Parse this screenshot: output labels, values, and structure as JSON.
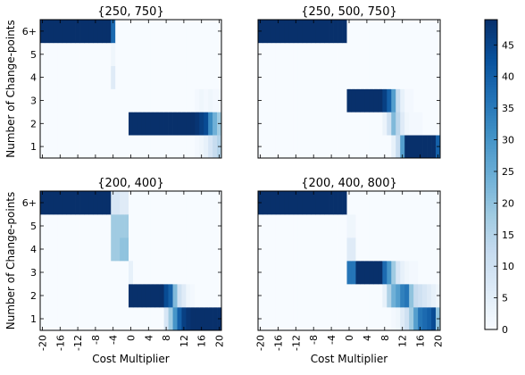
{
  "chart_data": {
    "type": "heatmap",
    "colormap": "Blues",
    "colorbar": {
      "min": 0,
      "max": 49,
      "ticks": [
        0,
        5,
        10,
        15,
        20,
        25,
        30,
        35,
        40,
        45
      ]
    },
    "xlabel": "Cost Multiplier",
    "ylabel": "Number of Change-points",
    "x_ticks": [
      "-20",
      "-16",
      "-12",
      "-8",
      "-4",
      "0",
      "4",
      "8",
      "12",
      "16",
      "20"
    ],
    "y_ticks": [
      "1",
      "2",
      "3",
      "4",
      "5",
      "6+"
    ],
    "x_values": [
      -20,
      -19,
      -18,
      -17,
      -16,
      -15,
      -14,
      -13,
      -12,
      -11,
      -10,
      -9,
      -8,
      -7,
      -6,
      -5,
      -4,
      -3,
      -2,
      -1,
      0,
      1,
      2,
      3,
      4,
      5,
      6,
      7,
      8,
      9,
      10,
      11,
      12,
      13,
      14,
      15,
      16,
      17,
      18,
      19,
      20
    ],
    "panels": [
      {
        "title": "{250, 750}",
        "rows_bottom_to_top": [
          [
            0,
            0,
            0,
            0,
            0,
            0,
            0,
            0,
            0,
            0,
            0,
            0,
            0,
            0,
            0,
            0,
            0,
            0,
            0,
            0,
            0,
            0,
            0,
            0,
            0,
            0,
            0,
            0,
            0,
            0,
            0,
            0,
            0,
            0,
            0,
            1,
            2,
            4,
            8,
            12,
            15
          ],
          [
            0,
            0,
            0,
            0,
            0,
            0,
            0,
            0,
            0,
            0,
            0,
            0,
            0,
            0,
            0,
            0,
            0,
            0,
            0,
            0,
            49,
            49,
            49,
            49,
            49,
            49,
            49,
            49,
            49,
            49,
            49,
            49,
            49,
            49,
            49,
            48,
            46,
            44,
            32,
            24,
            18
          ],
          [
            0,
            0,
            0,
            0,
            0,
            0,
            0,
            0,
            0,
            0,
            0,
            0,
            0,
            0,
            0,
            0,
            0,
            0,
            0,
            0,
            0,
            0,
            0,
            0,
            0,
            0,
            0,
            0,
            0,
            0,
            0,
            0,
            0,
            0,
            0,
            1,
            2,
            1,
            2,
            1,
            1
          ],
          [
            0,
            0,
            0,
            0,
            0,
            0,
            0,
            0,
            0,
            0,
            0,
            0,
            0,
            0,
            0,
            0,
            6,
            0,
            0,
            0,
            0,
            0,
            0,
            0,
            0,
            0,
            0,
            0,
            0,
            0,
            0,
            0,
            0,
            0,
            0,
            0,
            0,
            0,
            0,
            0,
            0
          ],
          [
            0,
            0,
            0,
            0,
            0,
            0,
            0,
            0,
            0,
            0,
            0,
            0,
            0,
            0,
            0,
            0,
            2,
            0,
            0,
            0,
            0,
            0,
            0,
            0,
            0,
            0,
            0,
            0,
            0,
            0,
            0,
            0,
            0,
            0,
            0,
            0,
            0,
            0,
            0,
            0,
            0
          ],
          [
            49,
            49,
            49,
            49,
            49,
            49,
            49,
            49,
            49,
            49,
            49,
            49,
            49,
            49,
            49,
            49,
            38,
            0,
            0,
            0,
            0,
            0,
            0,
            0,
            0,
            0,
            0,
            0,
            0,
            0,
            0,
            0,
            0,
            0,
            0,
            0,
            0,
            0,
            0,
            0,
            0
          ]
        ]
      },
      {
        "title": "{250, 500, 750}",
        "rows_bottom_to_top": [
          [
            0,
            0,
            0,
            0,
            0,
            0,
            0,
            0,
            0,
            0,
            0,
            0,
            0,
            0,
            0,
            0,
            0,
            0,
            0,
            0,
            0,
            0,
            0,
            0,
            0,
            0,
            0,
            0,
            0,
            0,
            4,
            12,
            28,
            49,
            49,
            49,
            49,
            49,
            49,
            49,
            40
          ],
          [
            0,
            0,
            0,
            0,
            0,
            0,
            0,
            0,
            0,
            0,
            0,
            0,
            0,
            0,
            0,
            0,
            0,
            0,
            0,
            0,
            0,
            0,
            0,
            0,
            0,
            0,
            0,
            0,
            3,
            10,
            22,
            14,
            6,
            2,
            1,
            1,
            1,
            0,
            0,
            0,
            0
          ],
          [
            0,
            0,
            0,
            0,
            0,
            0,
            0,
            0,
            0,
            0,
            0,
            0,
            0,
            0,
            0,
            0,
            0,
            0,
            0,
            0,
            49,
            49,
            49,
            49,
            49,
            49,
            49,
            49,
            46,
            40,
            28,
            12,
            4,
            1,
            1,
            0,
            0,
            0,
            0,
            0,
            0
          ],
          [
            0,
            0,
            0,
            0,
            0,
            0,
            0,
            0,
            0,
            0,
            0,
            0,
            0,
            0,
            0,
            0,
            0,
            0,
            0,
            0,
            0,
            0,
            0,
            0,
            0,
            0,
            0,
            0,
            0,
            0,
            0,
            0,
            0,
            0,
            0,
            0,
            0,
            0,
            0,
            0,
            0
          ],
          [
            0,
            0,
            0,
            0,
            0,
            0,
            0,
            0,
            0,
            0,
            0,
            0,
            0,
            0,
            0,
            0,
            0,
            0,
            0,
            0,
            0,
            0,
            0,
            0,
            0,
            0,
            0,
            0,
            0,
            0,
            0,
            0,
            0,
            0,
            0,
            0,
            0,
            0,
            0,
            0,
            0
          ],
          [
            49,
            49,
            49,
            49,
            49,
            49,
            49,
            49,
            49,
            49,
            49,
            49,
            49,
            49,
            49,
            49,
            49,
            49,
            49,
            49,
            0,
            0,
            0,
            0,
            0,
            0,
            0,
            0,
            0,
            0,
            0,
            0,
            0,
            0,
            0,
            0,
            0,
            0,
            0,
            0,
            0
          ]
        ]
      },
      {
        "title": "{200, 400}",
        "rows_bottom_to_top": [
          [
            0,
            0,
            0,
            0,
            0,
            0,
            0,
            0,
            0,
            0,
            0,
            0,
            0,
            0,
            0,
            0,
            0,
            0,
            0,
            0,
            0,
            0,
            0,
            0,
            0,
            0,
            0,
            0,
            8,
            18,
            30,
            40,
            46,
            48,
            49,
            49,
            49,
            49,
            49,
            49,
            49
          ],
          [
            0,
            0,
            0,
            0,
            0,
            0,
            0,
            0,
            0,
            0,
            0,
            0,
            0,
            0,
            0,
            0,
            0,
            0,
            0,
            0,
            49,
            49,
            49,
            49,
            49,
            49,
            49,
            49,
            44,
            40,
            22,
            10,
            6,
            2,
            1,
            0,
            0,
            0,
            0,
            0,
            0
          ],
          [
            0,
            0,
            0,
            0,
            0,
            0,
            0,
            0,
            0,
            0,
            0,
            0,
            0,
            0,
            0,
            0,
            0,
            0,
            0,
            0,
            4,
            0,
            0,
            0,
            0,
            0,
            0,
            0,
            0,
            0,
            0,
            0,
            0,
            0,
            0,
            0,
            0,
            0,
            0,
            0,
            0
          ],
          [
            0,
            0,
            0,
            0,
            0,
            0,
            0,
            0,
            0,
            0,
            0,
            0,
            0,
            0,
            0,
            0,
            18,
            18,
            20,
            20,
            0,
            0,
            0,
            0,
            0,
            0,
            0,
            0,
            0,
            0,
            0,
            0,
            0,
            0,
            0,
            0,
            0,
            0,
            0,
            0,
            0
          ],
          [
            0,
            0,
            0,
            0,
            0,
            0,
            0,
            0,
            0,
            0,
            0,
            0,
            0,
            0,
            0,
            0,
            18,
            18,
            18,
            18,
            0,
            0,
            0,
            0,
            0,
            0,
            0,
            0,
            0,
            0,
            0,
            0,
            0,
            0,
            0,
            0,
            0,
            0,
            0,
            0,
            0
          ],
          [
            49,
            49,
            49,
            49,
            49,
            49,
            49,
            49,
            49,
            49,
            49,
            49,
            49,
            49,
            49,
            49,
            8,
            8,
            6,
            6,
            0,
            0,
            0,
            0,
            0,
            0,
            0,
            0,
            0,
            0,
            0,
            0,
            0,
            0,
            0,
            0,
            0,
            0,
            0,
            0,
            0
          ]
        ]
      },
      {
        "title": "{200, 400, 800}",
        "rows_bottom_to_top": [
          [
            0,
            0,
            0,
            0,
            0,
            0,
            0,
            0,
            0,
            0,
            0,
            0,
            0,
            0,
            0,
            0,
            0,
            0,
            0,
            0,
            0,
            0,
            0,
            0,
            0,
            0,
            0,
            0,
            0,
            0,
            1,
            2,
            6,
            10,
            18,
            28,
            36,
            38,
            40,
            44,
            20
          ],
          [
            0,
            0,
            0,
            0,
            0,
            0,
            0,
            0,
            0,
            0,
            0,
            0,
            0,
            0,
            0,
            0,
            0,
            0,
            0,
            0,
            0,
            0,
            0,
            0,
            0,
            0,
            0,
            0,
            4,
            16,
            24,
            28,
            34,
            36,
            20,
            12,
            10,
            8,
            6,
            4,
            2
          ],
          [
            0,
            0,
            0,
            0,
            0,
            0,
            0,
            0,
            0,
            0,
            0,
            0,
            0,
            0,
            0,
            0,
            0,
            0,
            0,
            0,
            36,
            36,
            49,
            49,
            49,
            49,
            49,
            49,
            38,
            30,
            18,
            8,
            4,
            2,
            1,
            1,
            0,
            0,
            0,
            0,
            0
          ],
          [
            0,
            0,
            0,
            0,
            0,
            0,
            0,
            0,
            0,
            0,
            0,
            0,
            0,
            0,
            0,
            0,
            0,
            0,
            0,
            0,
            6,
            6,
            0,
            0,
            0,
            0,
            0,
            0,
            0,
            0,
            0,
            0,
            0,
            0,
            0,
            0,
            0,
            0,
            0,
            0,
            0
          ],
          [
            0,
            0,
            0,
            0,
            0,
            0,
            0,
            0,
            0,
            0,
            0,
            0,
            0,
            0,
            0,
            0,
            0,
            0,
            0,
            0,
            2,
            2,
            0,
            0,
            0,
            0,
            0,
            0,
            0,
            0,
            0,
            0,
            0,
            0,
            0,
            0,
            0,
            0,
            0,
            0,
            0
          ],
          [
            49,
            49,
            49,
            49,
            49,
            49,
            49,
            49,
            49,
            49,
            49,
            49,
            49,
            49,
            49,
            49,
            49,
            49,
            49,
            49,
            0,
            0,
            0,
            0,
            0,
            0,
            0,
            0,
            0,
            0,
            0,
            0,
            0,
            0,
            0,
            0,
            0,
            0,
            0,
            0,
            0
          ]
        ]
      }
    ]
  }
}
